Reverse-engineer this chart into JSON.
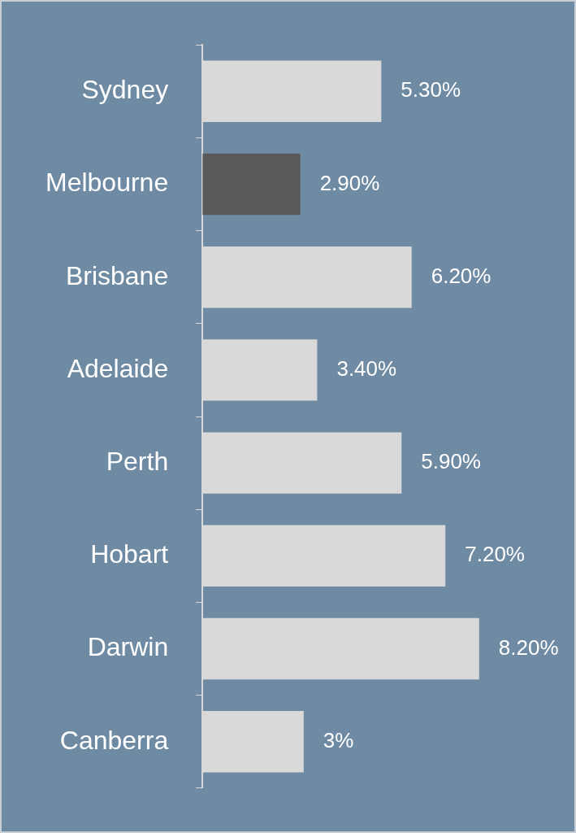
{
  "chart_data": {
    "type": "bar",
    "orientation": "horizontal",
    "categories": [
      "Sydney",
      "Melbourne",
      "Brisbane",
      "Adelaide",
      "Perth",
      "Hobart",
      "Darwin",
      "Canberra"
    ],
    "values": [
      5.3,
      2.9,
      6.2,
      3.4,
      5.9,
      7.2,
      8.2,
      3
    ],
    "colors": [
      "#d9d9d9",
      "#595959",
      "#d9d9d9",
      "#d9d9d9",
      "#d9d9d9",
      "#d9d9d9",
      "#d9d9d9",
      "#d9d9d9"
    ],
    "value_labels": [
      "5.30%",
      "2.90%",
      "6.20%",
      "3.40%",
      "5.90%",
      "7.20%",
      "8.20%",
      "3%"
    ],
    "grid": false,
    "legend": false
  }
}
